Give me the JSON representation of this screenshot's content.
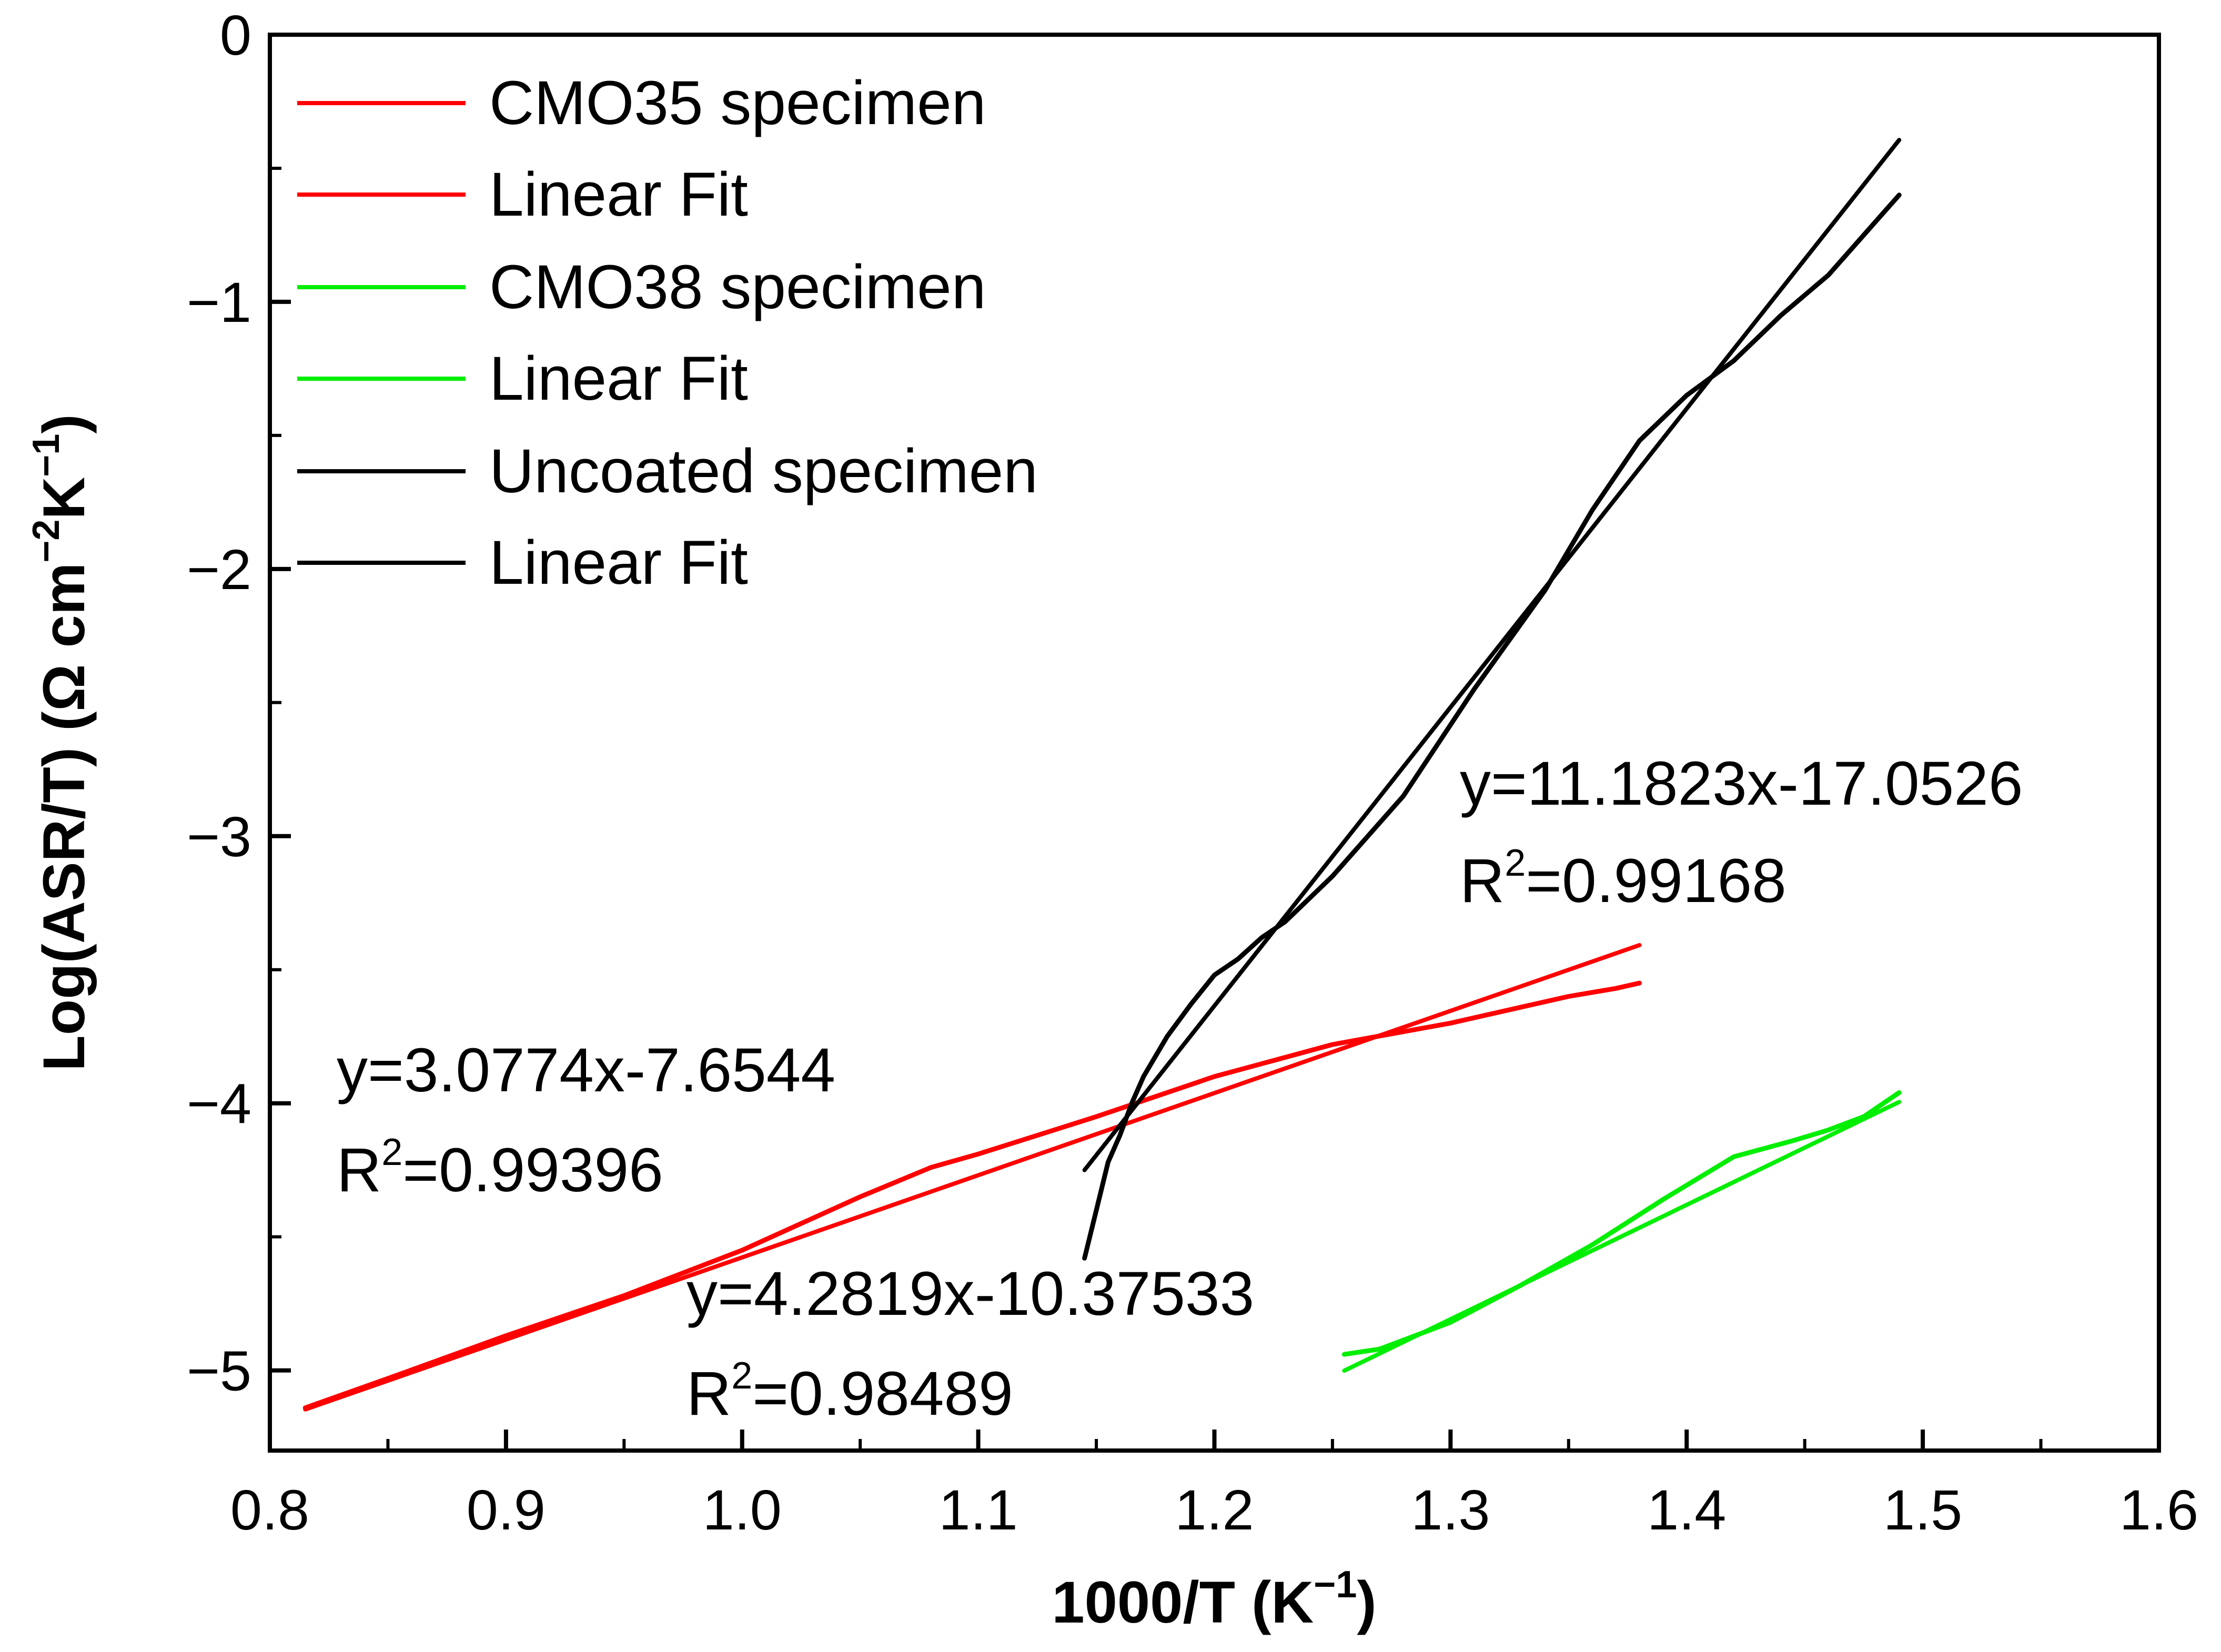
{
  "chart_data": {
    "type": "line",
    "title": "",
    "xlabel": "1000/T (K",
    "xlabel_sup": "−1",
    "xlabel_end": ")",
    "ylabel": "Log(ASR/T) (Ω cm",
    "ylabel_sup1": "−2",
    "ylabel_mid": "K",
    "ylabel_sup2": "−1",
    "ylabel_end": ")",
    "xlim": [
      0.8,
      1.6
    ],
    "ylim": [
      -5.3,
      0
    ],
    "xticks": [
      "0.8",
      "0.9",
      "1.0",
      "1.1",
      "1.2",
      "1.3",
      "1.4",
      "1.5",
      "1.6"
    ],
    "xtick_values": [
      0.8,
      0.9,
      1.0,
      1.1,
      1.2,
      1.3,
      1.4,
      1.5,
      1.6
    ],
    "yticks": [
      "0",
      "−1",
      "−2",
      "−3",
      "−4",
      "−5"
    ],
    "ytick_values": [
      0,
      -1,
      -2,
      -3,
      -4,
      -5
    ],
    "grid": false,
    "legend_position": "top-left",
    "series": [
      {
        "name": "CMO35 specimen",
        "color": "#ff0000",
        "kind": "measured",
        "x": [
          0.815,
          0.85,
          0.9,
          0.95,
          1.0,
          1.05,
          1.08,
          1.1,
          1.15,
          1.2,
          1.25,
          1.3,
          1.33,
          1.35,
          1.37,
          1.38
        ],
        "y": [
          -5.14,
          -5.03,
          -4.87,
          -4.72,
          -4.55,
          -4.35,
          -4.24,
          -4.19,
          -4.05,
          -3.9,
          -3.78,
          -3.7,
          -3.64,
          -3.6,
          -3.57,
          -3.55
        ]
      },
      {
        "name": "Linear Fit",
        "color": "#ff0000",
        "kind": "fit",
        "x": [
          0.815,
          1.38
        ],
        "y": [
          -5.146,
          -3.408
        ]
      },
      {
        "name": "CMO38 specimen",
        "color": "#00ee00",
        "kind": "measured",
        "x": [
          1.255,
          1.27,
          1.3,
          1.33,
          1.36,
          1.39,
          1.42,
          1.445,
          1.46,
          1.475,
          1.49
        ],
        "y": [
          -4.94,
          -4.92,
          -4.82,
          -4.68,
          -4.53,
          -4.36,
          -4.2,
          -4.14,
          -4.1,
          -4.05,
          -3.96
        ]
      },
      {
        "name": "Linear Fit",
        "color": "#00ee00",
        "kind": "fit",
        "x": [
          1.255,
          1.49
        ],
        "y": [
          -5.001,
          -3.995
        ]
      },
      {
        "name": "Uncoated specimen",
        "color": "#000000",
        "kind": "measured",
        "x": [
          1.145,
          1.15,
          1.155,
          1.16,
          1.165,
          1.17,
          1.18,
          1.19,
          1.2,
          1.21,
          1.22,
          1.23,
          1.25,
          1.28,
          1.31,
          1.34,
          1.36,
          1.38,
          1.4,
          1.42,
          1.44,
          1.46,
          1.48,
          1.49
        ],
        "y": [
          -4.58,
          -4.4,
          -4.22,
          -4.12,
          -4.0,
          -3.9,
          -3.75,
          -3.63,
          -3.52,
          -3.46,
          -3.38,
          -3.32,
          -3.15,
          -2.85,
          -2.45,
          -2.08,
          -1.78,
          -1.52,
          -1.35,
          -1.22,
          -1.05,
          -0.9,
          -0.7,
          -0.6
        ]
      },
      {
        "name": "Linear Fit",
        "color": "#000000",
        "kind": "fit",
        "x": [
          1.145,
          1.49
        ],
        "y": [
          -4.25,
          -0.394
        ]
      }
    ],
    "annotations": [
      {
        "id": "uncoated-eq",
        "text": "y=11.1823x-17.0526",
        "r2_prefix": "R",
        "r2_sup": "2",
        "r2_value": "=0.99168"
      },
      {
        "id": "cmo35-eq",
        "text": "y=3.0774x-7.6544",
        "r2_prefix": "R",
        "r2_sup": "2",
        "r2_value": "=0.99396"
      },
      {
        "id": "cmo38-eq",
        "text": "y=4.2819x-10.37533",
        "r2_prefix": "R",
        "r2_sup": "2",
        "r2_value": "=0.98489"
      }
    ]
  }
}
